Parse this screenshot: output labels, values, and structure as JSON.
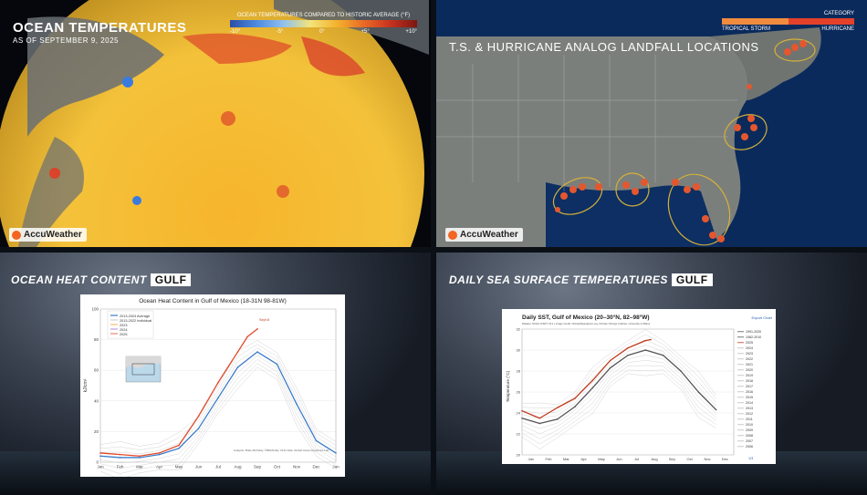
{
  "panel1": {
    "title": "OCEAN TEMPERATURES",
    "subtitle": "AS OF SEPTEMBER 9, 2025",
    "legend_title": "OCEAN TEMPERATURES COMPARED TO HISTORIC AVERAGE (°F)",
    "legend_ticks": [
      "-10°",
      "-5°",
      "0°",
      "+5°",
      "+10°"
    ],
    "logo": "AccuWeather"
  },
  "panel2": {
    "title": "T.S. & HURRICANE ANALOG LANDFALL LOCATIONS",
    "legend_header": "CATEGORY",
    "legend_labels": [
      "TROPICAL STORM",
      "HURRICANE"
    ],
    "logo": "AccuWeather"
  },
  "panel3": {
    "title_main": "OCEAN HEAT CONTENT",
    "title_tag": "GULF",
    "chart_title": "Ocean Heat Content in Gulf of Mexico (18-31N 98-81W)",
    "ylabel": "kJ/cm²",
    "legend": [
      "2013-2024 Average",
      "2013-2022 Individual",
      "2023",
      "2024",
      "2025"
    ],
    "annotation": "Sept 8",
    "credit": "Analysis: Brian McNoldy, ©BMcNoldy, OHC data: Global Ocean Dynamics Lab"
  },
  "panel4": {
    "title_main": "DAILY SEA SURFACE TEMPERATURES",
    "title_tag": "GULF",
    "chart_title": "Daily SST, Gulf of Mexico (20–30°N, 82–98°W)",
    "chart_subtitle": "Dataset: NOAA OISST V2.1 | Image Credit: ClimateReanalyzer.org, Climate Change Institute, University of Maine",
    "export": "Export Chart",
    "ylabel": "Temperature (°C)",
    "legend": [
      "1991-2020",
      "1982-2010",
      "2025",
      "2024",
      "2023",
      "2022",
      "2021",
      "2020",
      "2019",
      "2018",
      "2017",
      "2016",
      "2015",
      "2014",
      "2013",
      "2012",
      "2011",
      "2010",
      "2009",
      "2008",
      "2007",
      "2006"
    ],
    "legend_pager": "1/3"
  },
  "chart_data": [
    {
      "type": "line",
      "title": "Ocean Heat Content in Gulf of Mexico (18-31N 98-81W)",
      "ylabel": "kJ/cm²",
      "categories": [
        "Jan",
        "Feb",
        "Mar",
        "Apr",
        "May",
        "Jun",
        "Jul",
        "Aug",
        "Sep",
        "Oct",
        "Nov",
        "Dec",
        "Jan"
      ],
      "ylim": [
        0,
        100
      ],
      "yticks": [
        0,
        20,
        40,
        60,
        80,
        100
      ],
      "series": [
        {
          "name": "2013-2024 Average",
          "color": "#3a7bc8",
          "x": [
            0,
            1,
            2,
            3,
            4,
            5,
            6,
            7,
            8,
            9,
            10,
            11,
            12
          ],
          "y": [
            4,
            3,
            3,
            5,
            9,
            22,
            42,
            62,
            72,
            64,
            38,
            14,
            6
          ]
        },
        {
          "name": "2025",
          "color": "#e04a2a",
          "x": [
            0,
            1,
            2,
            3,
            4,
            5,
            6,
            7,
            7.5,
            8
          ],
          "y": [
            6,
            5,
            4,
            6,
            11,
            30,
            52,
            72,
            82,
            87
          ]
        }
      ]
    },
    {
      "type": "line",
      "title": "Daily SST, Gulf of Mexico (20–30°N, 82–98°W)",
      "ylabel": "Temperature (°C)",
      "categories": [
        "Jan",
        "Feb",
        "Mar",
        "Apr",
        "May",
        "Jun",
        "Jul",
        "Aug",
        "Sep",
        "Oct",
        "Nov",
        "Dec"
      ],
      "ylim": [
        20,
        32
      ],
      "yticks": [
        20,
        22,
        24,
        26,
        28,
        30,
        32
      ],
      "series": [
        {
          "name": "1991-2020",
          "color": "#555555",
          "x": [
            0,
            1,
            2,
            3,
            4,
            5,
            6,
            7,
            8,
            9,
            10,
            11
          ],
          "y": [
            23.5,
            23.0,
            23.4,
            24.6,
            26.4,
            28.3,
            29.5,
            30.0,
            29.5,
            28.0,
            26.0,
            24.3
          ]
        },
        {
          "name": "2025",
          "color": "#c0391b",
          "x": [
            0,
            1,
            2,
            3,
            4,
            5,
            6,
            7,
            7.3
          ],
          "y": [
            24.2,
            23.5,
            24.5,
            25.4,
            27.1,
            29.0,
            30.2,
            30.9,
            31.0
          ]
        }
      ]
    }
  ]
}
